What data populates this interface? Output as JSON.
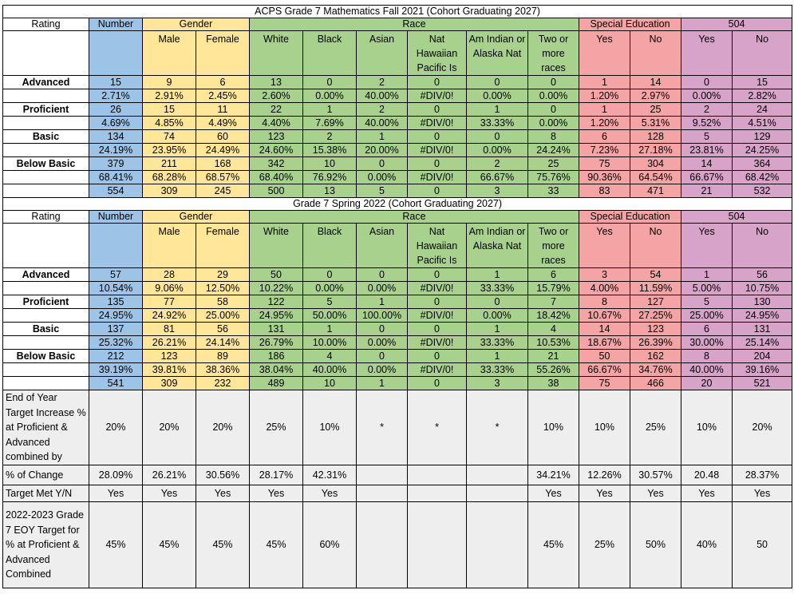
{
  "fall": {
    "title": "ACPS Grade 7 Mathematics Fall 2021 (Cohort Graduating 2027)",
    "group_labels": {
      "rating": "Rating",
      "number": "Number",
      "gender": "Gender",
      "race": "Race",
      "sped": "Special Education",
      "s504": "504"
    },
    "columns": [
      "Male",
      "Female",
      "White",
      "Black",
      "Asian",
      "Nat Hawaiian Pacific Is",
      "Am Indian or Alaska Nat",
      "Two or more races",
      "Yes",
      "No",
      "Yes",
      "No"
    ],
    "rows": [
      {
        "label": "Advanced",
        "values": [
          "15",
          "9",
          "6",
          "13",
          "0",
          "2",
          "0",
          "0",
          "0",
          "1",
          "14",
          "0",
          "15"
        ]
      },
      {
        "label": "",
        "values": [
          "2.71%",
          "2.91%",
          "2.45%",
          "2.60%",
          "0.00%",
          "40.00%",
          "#DIV/0!",
          "0.00%",
          "0.00%",
          "1.20%",
          "2.97%",
          "0.00%",
          "2.82%"
        ]
      },
      {
        "label": "Proficient",
        "values": [
          "26",
          "15",
          "11",
          "22",
          "1",
          "2",
          "0",
          "1",
          "0",
          "1",
          "25",
          "2",
          "24"
        ]
      },
      {
        "label": "",
        "values": [
          "4.69%",
          "4.85%",
          "4.49%",
          "4.40%",
          "7.69%",
          "40.00%",
          "#DIV/0!",
          "33.33%",
          "0.00%",
          "1.20%",
          "5.31%",
          "9.52%",
          "4.51%"
        ]
      },
      {
        "label": "Basic",
        "values": [
          "134",
          "74",
          "60",
          "123",
          "2",
          "1",
          "0",
          "0",
          "8",
          "6",
          "128",
          "5",
          "129"
        ]
      },
      {
        "label": "",
        "values": [
          "24.19%",
          "23.95%",
          "24.49%",
          "24.60%",
          "15.38%",
          "20.00%",
          "#DIV/0!",
          "0.00%",
          "24.24%",
          "7.23%",
          "27.18%",
          "23.81%",
          "24.25%"
        ]
      },
      {
        "label": "Below Basic",
        "values": [
          "379",
          "211",
          "168",
          "342",
          "10",
          "0",
          "0",
          "2",
          "25",
          "75",
          "304",
          "14",
          "364"
        ]
      },
      {
        "label": "",
        "values": [
          "68.41%",
          "68.28%",
          "68.57%",
          "68.40%",
          "76.92%",
          "0.00%",
          "#DIV/0!",
          "66.67%",
          "75.76%",
          "90.36%",
          "64.54%",
          "66.67%",
          "68.42%"
        ]
      },
      {
        "label": "",
        "values": [
          "554",
          "309",
          "245",
          "500",
          "13",
          "5",
          "0",
          "3",
          "33",
          "83",
          "471",
          "21",
          "532"
        ]
      }
    ]
  },
  "spring": {
    "title": "Grade 7 Spring 2022 (Cohort Graduating 2027)",
    "group_labels": {
      "rating": "Rating",
      "number": "Number",
      "gender": "Gender",
      "race": "Race",
      "sped": "Special Education",
      "s504": "504"
    },
    "columns": [
      "Male",
      "Female",
      "White",
      "Black",
      "Asian",
      "Nat Hawaiian Pacific Is",
      "Am Indian or Alaska Nat",
      "Two or more races",
      "Yes",
      "No",
      "Yes",
      "No"
    ],
    "rows": [
      {
        "label": "Advanced",
        "values": [
          "57",
          "28",
          "29",
          "50",
          "0",
          "0",
          "0",
          "1",
          "6",
          "3",
          "54",
          "1",
          "56"
        ]
      },
      {
        "label": "",
        "values": [
          "10.54%",
          "9.06%",
          "12.50%",
          "10.22%",
          "0.00%",
          "0.00%",
          "#DIV/0!",
          "33.33%",
          "15.79%",
          "4.00%",
          "11.59%",
          "5.00%",
          "10.75%"
        ]
      },
      {
        "label": "Proficient",
        "values": [
          "135",
          "77",
          "58",
          "122",
          "5",
          "1",
          "0",
          "0",
          "7",
          "8",
          "127",
          "5",
          "130"
        ]
      },
      {
        "label": "",
        "values": [
          "24.95%",
          "24.92%",
          "25.00%",
          "24.95%",
          "50.00%",
          "100.00%",
          "#DIV/0!",
          "0.00%",
          "18.42%",
          "10.67%",
          "27.25%",
          "25.00%",
          "24.95%"
        ]
      },
      {
        "label": "Basic",
        "values": [
          "137",
          "81",
          "56",
          "131",
          "1",
          "0",
          "0",
          "1",
          "4",
          "14",
          "123",
          "6",
          "131"
        ]
      },
      {
        "label": "",
        "values": [
          "25.32%",
          "26.21%",
          "24.14%",
          "26.79%",
          "10.00%",
          "0.00%",
          "#DIV/0!",
          "33.33%",
          "10.53%",
          "18.67%",
          "26.39%",
          "30.00%",
          "25.14%"
        ]
      },
      {
        "label": "Below Basic",
        "values": [
          "212",
          "123",
          "89",
          "186",
          "4",
          "0",
          "0",
          "1",
          "21",
          "50",
          "162",
          "8",
          "204"
        ]
      },
      {
        "label": "",
        "values": [
          "39.19%",
          "39.81%",
          "38.36%",
          "38.04%",
          "40.00%",
          "0.00%",
          "#DIV/0!",
          "33.33%",
          "55.26%",
          "66.67%",
          "34.76%",
          "40.00%",
          "39.16%"
        ]
      },
      {
        "label": "",
        "values": [
          "541",
          "309",
          "232",
          "489",
          "10",
          "1",
          "0",
          "3",
          "38",
          "75",
          "466",
          "20",
          "521"
        ]
      }
    ]
  },
  "summary": {
    "target_increase": {
      "label": "End of Year Target Increase % at Proficient & Advanced combined by",
      "values": [
        "20%",
        "20%",
        "20%",
        "25%",
        "10%",
        "*",
        "*",
        "*",
        "10%",
        "10%",
        "25%",
        "10%",
        "20%"
      ]
    },
    "pct_change": {
      "label": "% of Change",
      "values": [
        "28.09%",
        "26.21%",
        "30.56%",
        "28.17%",
        "42.31%",
        "",
        "",
        "",
        "34.21%",
        "12.26%",
        "30.57%",
        "20.48",
        "28.37%"
      ]
    },
    "target_met": {
      "label": "Target Met Y/N",
      "values": [
        "Yes",
        "Yes",
        "Yes",
        "Yes",
        "Yes",
        "",
        "",
        "",
        "Yes",
        "Yes",
        "Yes",
        "Yes",
        "Yes"
      ]
    },
    "next_target": {
      "label": "2022-2023 Grade 7 EOY Target for % at Proficient & Advanced Combined",
      "values": [
        "45%",
        "45%",
        "45%",
        "45%",
        "60%",
        "",
        "",
        "",
        "45%",
        "25%",
        "50%",
        "40%",
        "50"
      ]
    }
  }
}
